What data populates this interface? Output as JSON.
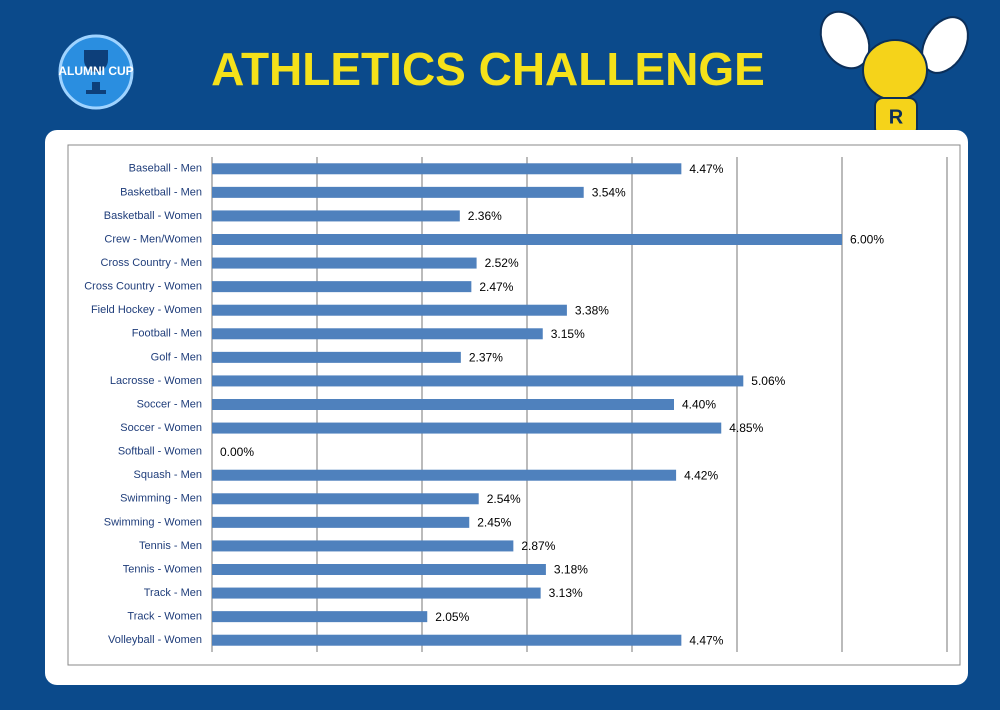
{
  "header": {
    "title": "ATHLETICS CHALLENGE",
    "logo": "ALUMNI CUP"
  },
  "chart_data": {
    "type": "barh",
    "categories": [
      "Baseball - Men",
      "Basketball - Men",
      "Basketball - Women",
      "Crew - Men/Women",
      "Cross Country - Men",
      "Cross Country - Women",
      "Field Hockey - Women",
      "Football - Men",
      "Golf - Men",
      "Lacrosse - Women",
      "Soccer - Men",
      "Soccer - Women",
      "Softball - Women",
      "Squash - Men",
      "Swimming - Men",
      "Swimming - Women",
      "Tennis - Men",
      "Tennis - Women",
      "Track - Men",
      "Track - Women",
      "Volleyball - Women"
    ],
    "values": [
      4.47,
      3.54,
      2.36,
      6.0,
      2.52,
      2.47,
      3.38,
      3.15,
      2.37,
      5.06,
      4.4,
      4.85,
      0,
      4.42,
      2.54,
      2.45,
      2.87,
      3.18,
      3.13,
      2.05,
      4.47
    ],
    "value_labels": [
      "4.47%",
      "3.54%",
      "2.36%",
      "6.00%",
      "2.52%",
      "2.47%",
      "3.38%",
      "3.15%",
      "2.37%",
      "5.06%",
      "4.40%",
      "4.85%",
      "0.00%",
      "4.42%",
      "2.54%",
      "2.45%",
      "2.87%",
      "3.18%",
      "3.13%",
      "2.05%",
      "4.47%"
    ],
    "color": "#4f81bd",
    "xlim": [
      0,
      7
    ],
    "xticks": [
      0,
      1,
      2,
      3,
      4,
      5,
      6,
      7
    ],
    "grid": true
  }
}
